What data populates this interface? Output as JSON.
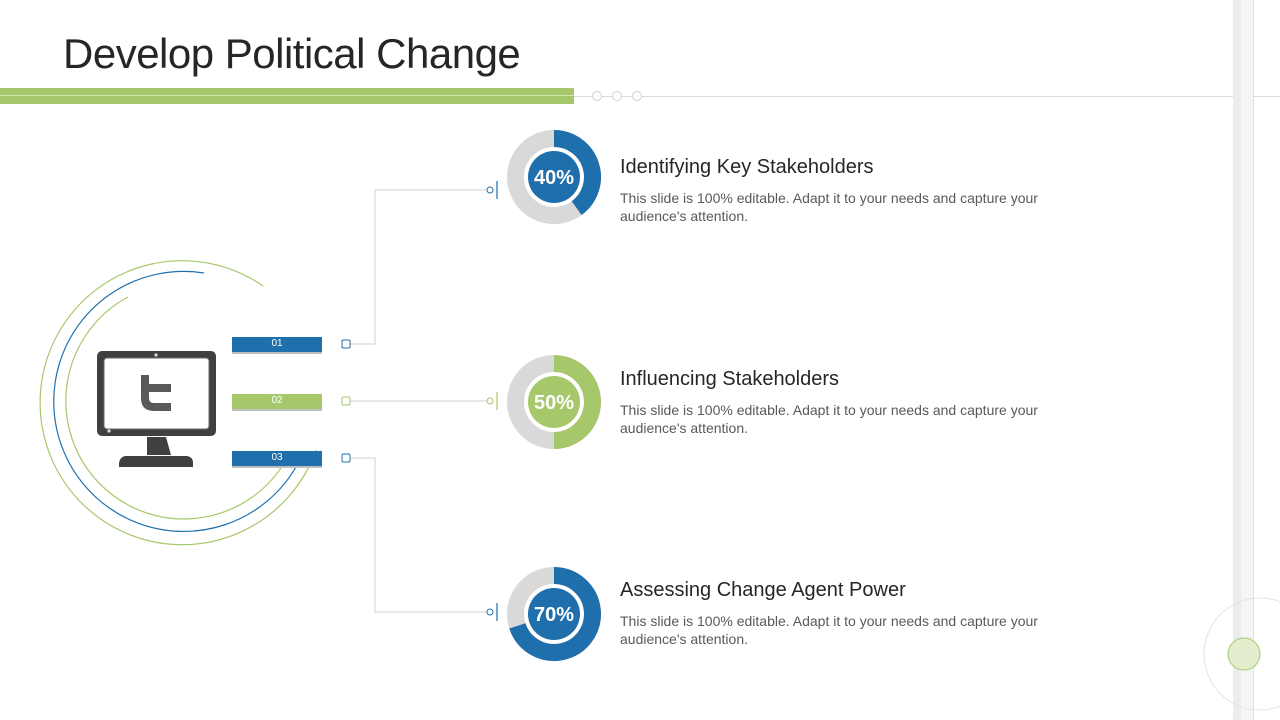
{
  "title": "Develop Political Change",
  "colors": {
    "blue": "#1f6fad",
    "green": "#a6c86b",
    "gray": "#d9d9d9",
    "dark": "#404040"
  },
  "center_icon": "twitter-monitor-icon",
  "items": [
    {
      "number": "01",
      "percent_label": "40%",
      "percent": 40,
      "color": "blue",
      "title": "Identifying Key Stakeholders",
      "description": "This slide is 100% editable. Adapt it to your needs and capture your audience's attention."
    },
    {
      "number": "02",
      "percent_label": "50%",
      "percent": 50,
      "color": "green",
      "title": "Influencing Stakeholders",
      "description": "This slide is 100% editable. Adapt it to your needs and capture your audience's attention."
    },
    {
      "number": "03",
      "percent_label": "70%",
      "percent": 70,
      "color": "blue",
      "title": "Assessing Change Agent Power",
      "description": "This slide is 100% editable. Adapt it to your needs and capture your audience's attention."
    }
  ]
}
